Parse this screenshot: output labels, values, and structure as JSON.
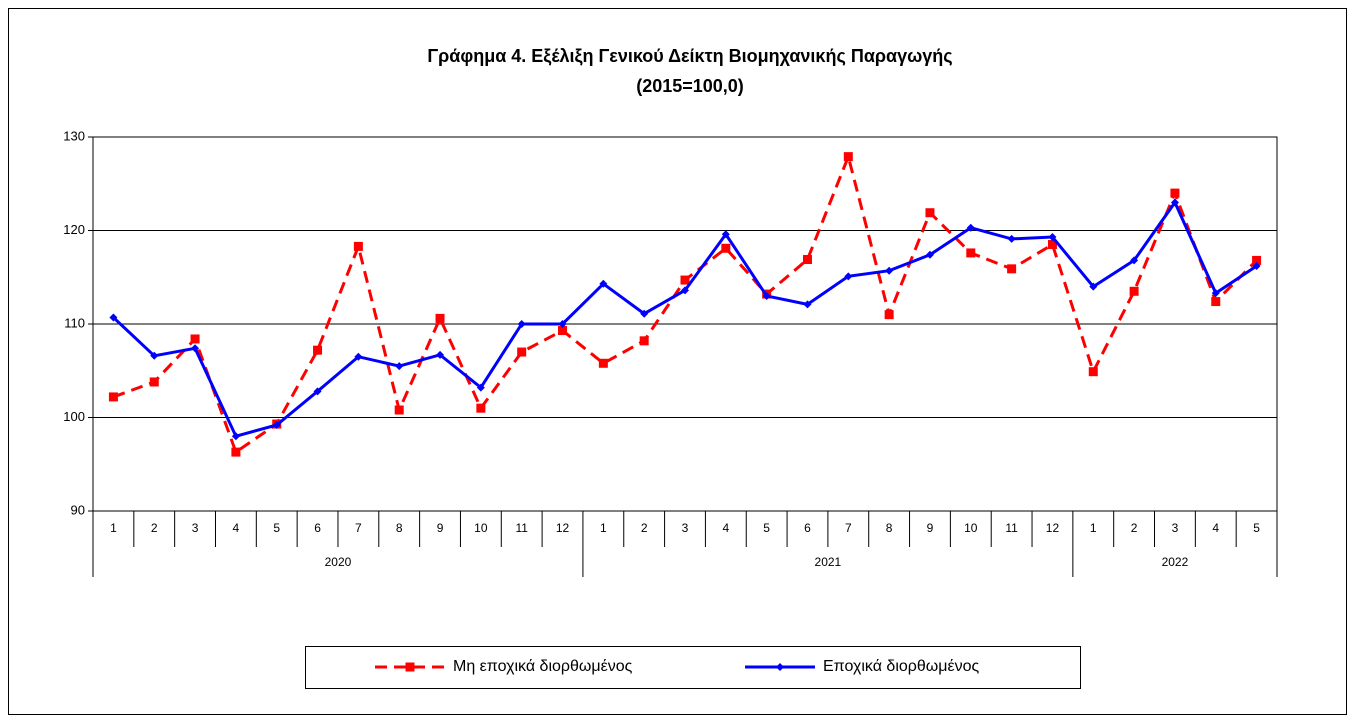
{
  "chart_data": {
    "type": "line",
    "title": "Γράφημα 4. Εξέλιξη Γενικού Δείκτη Βιομηχανικής Παραγωγής",
    "subtitle": "(2015=100,0)",
    "categories": [
      "1",
      "2",
      "3",
      "4",
      "5",
      "6",
      "7",
      "8",
      "9",
      "10",
      "11",
      "12",
      "1",
      "2",
      "3",
      "4",
      "5",
      "6",
      "7",
      "8",
      "9",
      "10",
      "11",
      "12",
      "1",
      "2",
      "3",
      "4",
      "5"
    ],
    "groups": [
      "2020",
      "2021",
      "2022"
    ],
    "series": [
      {
        "name": "Μη εποχικά διορθωμένος",
        "color": "#ff0000",
        "style": "dashed",
        "marker": "square",
        "values": [
          102.2,
          103.8,
          108.4,
          96.3,
          99.3,
          107.2,
          118.3,
          100.8,
          110.6,
          101.0,
          107.0,
          109.3,
          105.8,
          108.2,
          114.7,
          118.1,
          113.2,
          116.9,
          127.9,
          111.0,
          121.9,
          117.6,
          115.9,
          118.5,
          104.9,
          113.5,
          124.0,
          112.4,
          116.8
        ]
      },
      {
        "name": "Εποχικά διορθωμένος",
        "color": "#0000ff",
        "style": "solid",
        "marker": "diamond",
        "values": [
          110.7,
          106.6,
          107.4,
          98.0,
          99.2,
          102.8,
          106.5,
          105.5,
          106.7,
          103.2,
          110.0,
          110.0,
          114.3,
          111.1,
          113.6,
          119.6,
          113.0,
          112.1,
          115.1,
          115.7,
          117.4,
          120.3,
          119.1,
          119.3,
          114.0,
          116.8,
          123.0,
          113.3,
          116.2
        ]
      }
    ],
    "ylim": [
      90,
      130
    ],
    "yticks": [
      90,
      100,
      110,
      120,
      130
    ],
    "grid": true,
    "legend": "bottom"
  }
}
